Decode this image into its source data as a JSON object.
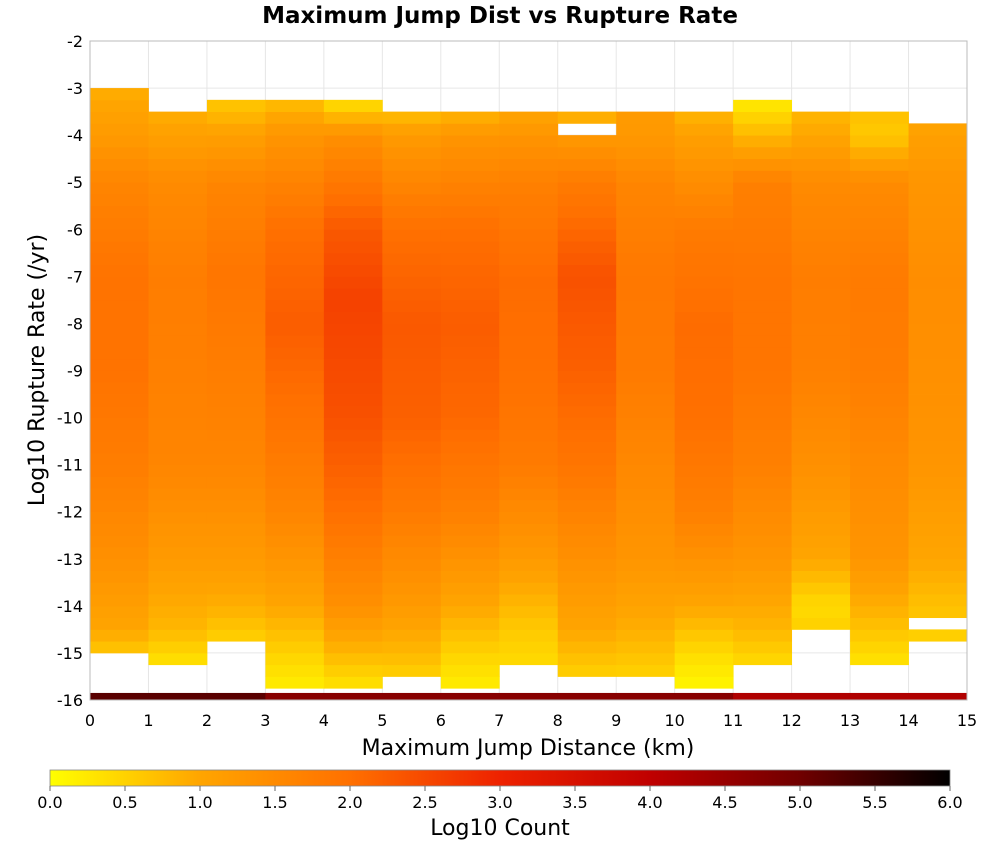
{
  "chart_data": {
    "type": "heatmap",
    "title": "Maximum Jump Dist vs Rupture Rate",
    "xlabel": "Maximum Jump Distance (km)",
    "ylabel": "Log10 Rupture Rate (/yr)",
    "xlim": [
      0,
      15
    ],
    "ylim": [
      -16,
      -2
    ],
    "x_ticks": [
      "0",
      "1",
      "2",
      "3",
      "4",
      "5",
      "6",
      "7",
      "8",
      "9",
      "10",
      "11",
      "12",
      "13",
      "14",
      "15"
    ],
    "y_ticks": [
      "-2",
      "-3",
      "-4",
      "-5",
      "-6",
      "-7",
      "-8",
      "-9",
      "-10",
      "-11",
      "-12",
      "-13",
      "-14",
      "-15",
      "-16"
    ],
    "grid": true,
    "x_bin_width": 1,
    "y_bin_width": 0.25,
    "colorbar": {
      "label": "Log10 Count",
      "min": 0.0,
      "max": 6.0,
      "ticks": [
        "0.0",
        "0.5",
        "1.0",
        "1.5",
        "2.0",
        "2.5",
        "3.0",
        "3.5",
        "4.0",
        "4.5",
        "5.0",
        "5.5",
        "6.0"
      ],
      "colors": [
        "#ffff00",
        "#ffa500",
        "#ff7000",
        "#ee2200",
        "#c00000",
        "#700000",
        "#000000"
      ]
    },
    "columns": [
      {
        "x": 0,
        "ymin": -15.0,
        "ymax": -3.0,
        "profile": [
          [
            -15,
            0.6
          ],
          [
            -14.5,
            1.0
          ],
          [
            -13,
            1.4
          ],
          [
            -11,
            1.75
          ],
          [
            -9,
            1.95
          ],
          [
            -7,
            1.95
          ],
          [
            -5,
            1.6
          ],
          [
            -4,
            1.2
          ],
          [
            -3,
            0.9
          ]
        ]
      },
      {
        "x": 1,
        "ymin": -15.25,
        "ymax": -3.5,
        "profile": [
          [
            -15.25,
            0.3
          ],
          [
            -14.5,
            0.8
          ],
          [
            -13,
            1.2
          ],
          [
            -11,
            1.6
          ],
          [
            -9,
            1.7
          ],
          [
            -7,
            1.75
          ],
          [
            -5,
            1.5
          ],
          [
            -4,
            1.1
          ],
          [
            -3.5,
            0.9
          ]
        ]
      },
      {
        "x": 2,
        "ymin": -14.75,
        "ymax": -3.25,
        "profile": [
          [
            -14.75,
            0.5
          ],
          [
            -14,
            0.9
          ],
          [
            -13,
            1.2
          ],
          [
            -11,
            1.6
          ],
          [
            -9,
            1.75
          ],
          [
            -7,
            1.9
          ],
          [
            -5,
            1.6
          ],
          [
            -4,
            1.1
          ],
          [
            -3.25,
            0.6
          ]
        ]
      },
      {
        "x": 3,
        "ymin": -15.75,
        "ymax": -3.25,
        "profile": [
          [
            -15.75,
            0.2
          ],
          [
            -15,
            0.5
          ],
          [
            -14,
            1.0
          ],
          [
            -12,
            1.6
          ],
          [
            -10,
            1.95
          ],
          [
            -8,
            2.25
          ],
          [
            -6,
            2.0
          ],
          [
            -4,
            1.3
          ],
          [
            -3.25,
            0.7
          ]
        ]
      },
      {
        "x": 4,
        "ymin": -15.75,
        "ymax": -3.25,
        "profile": [
          [
            -15.75,
            0.3
          ],
          [
            -15,
            0.8
          ],
          [
            -14,
            1.4
          ],
          [
            -12,
            2.0
          ],
          [
            -10,
            2.4
          ],
          [
            -7.5,
            2.6
          ],
          [
            -6,
            2.3
          ],
          [
            -4,
            1.4
          ],
          [
            -3.25,
            0.3
          ]
        ]
      },
      {
        "x": 5,
        "ymin": -15.5,
        "ymax": -3.5,
        "profile": [
          [
            -15.5,
            0.5
          ],
          [
            -15,
            0.8
          ],
          [
            -14,
            1.2
          ],
          [
            -12,
            1.8
          ],
          [
            -10,
            2.2
          ],
          [
            -8,
            2.3
          ],
          [
            -6,
            2.0
          ],
          [
            -4,
            1.2
          ],
          [
            -3.5,
            0.7
          ]
        ]
      },
      {
        "x": 6,
        "ymin": -15.75,
        "ymax": -3.5,
        "profile": [
          [
            -15.75,
            0.2
          ],
          [
            -15,
            0.5
          ],
          [
            -14,
            1.0
          ],
          [
            -12,
            1.7
          ],
          [
            -10,
            2.1
          ],
          [
            -8,
            2.25
          ],
          [
            -6,
            2.0
          ],
          [
            -4,
            1.3
          ],
          [
            -3.5,
            0.8
          ]
        ]
      },
      {
        "x": 7,
        "ymin": -15.25,
        "ymax": -3.5,
        "profile": [
          [
            -15.25,
            0.4
          ],
          [
            -14.5,
            0.6
          ],
          [
            -13,
            1.2
          ],
          [
            -11,
            1.8
          ],
          [
            -9,
            2.0
          ],
          [
            -7,
            2.05
          ],
          [
            -5,
            1.7
          ],
          [
            -4,
            1.3
          ],
          [
            -3.5,
            1.0
          ]
        ]
      },
      {
        "x": 8,
        "ymin": -15.5,
        "ymax": -3.5,
        "profile": [
          [
            -15.5,
            0.5
          ],
          [
            -14.5,
            1.0
          ],
          [
            -13,
            1.4
          ],
          [
            -11,
            1.9
          ],
          [
            -9,
            2.2
          ],
          [
            -7,
            2.4
          ],
          [
            -5,
            1.8
          ],
          [
            -4,
            1.2
          ],
          [
            -3.5,
            0.8
          ]
        ]
      },
      {
        "x": 9,
        "ymin": -15.5,
        "ymax": -3.5,
        "profile": [
          [
            -15.5,
            0.5
          ],
          [
            -14.5,
            0.9
          ],
          [
            -13,
            1.3
          ],
          [
            -11,
            1.55
          ],
          [
            -9,
            1.8
          ],
          [
            -7,
            1.85
          ],
          [
            -5,
            1.6
          ],
          [
            -4.25,
            1.3
          ],
          [
            -3.75,
            1.2
          ]
        ]
      },
      {
        "x": 10,
        "ymin": -15.75,
        "ymax": -3.5,
        "profile": [
          [
            -15.75,
            0.1
          ],
          [
            -15,
            0.4
          ],
          [
            -14,
            1.0
          ],
          [
            -12,
            1.7
          ],
          [
            -10,
            2.0
          ],
          [
            -8,
            2.05
          ],
          [
            -6,
            1.8
          ],
          [
            -4,
            1.1
          ],
          [
            -3.5,
            0.8
          ]
        ]
      },
      {
        "x": 11,
        "ymin": -15.25,
        "ymax": -3.25,
        "profile": [
          [
            -15.25,
            0.4
          ],
          [
            -14.5,
            0.8
          ],
          [
            -13,
            1.3
          ],
          [
            -11,
            1.7
          ],
          [
            -9,
            1.9
          ],
          [
            -7,
            1.9
          ],
          [
            -5,
            1.7
          ],
          [
            -4,
            0.8
          ],
          [
            -3.25,
            0.2
          ]
        ]
      },
      {
        "x": 12,
        "ymin": -14.75,
        "ymax": -3.5,
        "profile": [
          [
            -14.75,
            0.6
          ],
          [
            -14,
            0.4
          ],
          [
            -13,
            1.0
          ],
          [
            -11,
            1.4
          ],
          [
            -9,
            1.7
          ],
          [
            -7,
            1.75
          ],
          [
            -5,
            1.5
          ],
          [
            -4,
            1.0
          ],
          [
            -3.5,
            0.8
          ]
        ]
      },
      {
        "x": 13,
        "ymin": -15.25,
        "ymax": -3.5,
        "profile": [
          [
            -15.25,
            0.3
          ],
          [
            -14,
            0.9
          ],
          [
            -13,
            1.3
          ],
          [
            -11,
            1.5
          ],
          [
            -9,
            1.75
          ],
          [
            -7,
            1.8
          ],
          [
            -5,
            1.5
          ],
          [
            -4,
            0.6
          ],
          [
            -3.5,
            0.7
          ]
        ]
      },
      {
        "x": 14,
        "ymin": -14.75,
        "ymax": -3.75,
        "profile": [
          [
            -14.75,
            0.5
          ],
          [
            -14,
            0.7
          ],
          [
            -13,
            1.0
          ],
          [
            -11,
            1.3
          ],
          [
            -9,
            1.4
          ],
          [
            -7,
            1.45
          ],
          [
            -5,
            1.3
          ],
          [
            -4,
            1.1
          ],
          [
            -3.75,
            1.0
          ]
        ]
      }
    ],
    "gaps": [
      {
        "x": 8,
        "y": -4.0,
        "note": ""
      },
      {
        "x": 12,
        "y": -14.75,
        "note": ""
      },
      {
        "x": 14,
        "y": -14.5,
        "note": ""
      }
    ],
    "bottom_row": {
      "y": -16.0,
      "x_range": [
        0,
        15
      ],
      "segments": [
        [
          0,
          3,
          5.2
        ],
        [
          3,
          11,
          4.7
        ],
        [
          11,
          15,
          4.2
        ]
      ]
    }
  }
}
